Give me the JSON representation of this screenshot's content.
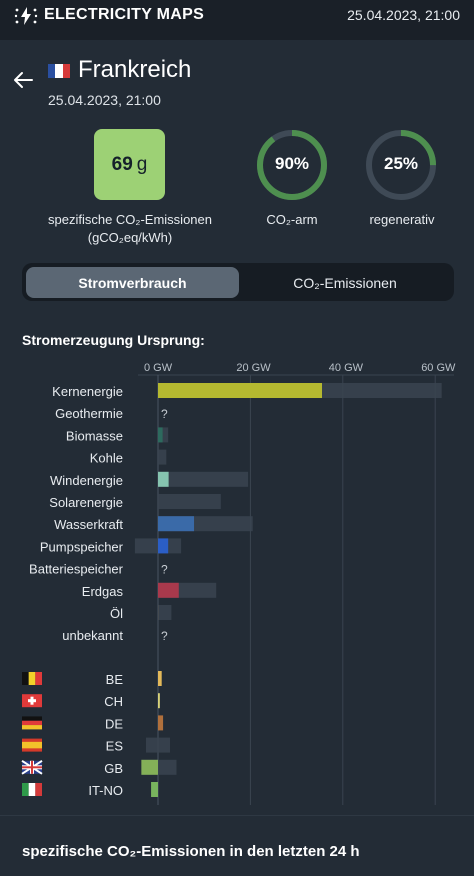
{
  "header": {
    "brand": "ELECTRICITY MAPS",
    "datetime": "25.04.2023, 21:00"
  },
  "zone": {
    "name": "Frankreich",
    "date": "25.04.2023, 21:00"
  },
  "metrics": {
    "intensity_value": "69",
    "intensity_unit": "g",
    "intensity_label_1": "spezifische CO₂-Emissionen",
    "intensity_label_2": "(gCO₂eq/kWh)",
    "low_carbon_value": "90%",
    "low_carbon_fraction": 0.9,
    "low_carbon_label": "CO₂-arm",
    "renewable_value": "25%",
    "renewable_fraction": 0.25,
    "renewable_label": "regenerativ"
  },
  "toggle": {
    "active": "Stromverbrauch",
    "inactive": "CO₂-Emissionen"
  },
  "section": {
    "origin_title": "Stromerzeugung Ursprung:",
    "history_title": "spezifische CO₂-Emissionen in den letzten 24 h"
  },
  "colors": {
    "nuclear": "#b5b930",
    "wind": "#86c4b0",
    "hydro": "#3a6aa8",
    "pumped": "#2b5ec6",
    "biomass": "#2d6a5e",
    "gas": "#a8394c",
    "bar_bg": "#3a4450",
    "be": "#e3b95a",
    "ch": "#d9d37a",
    "de": "#b0703c",
    "gb": "#84b058",
    "itno": "#78b45e",
    "accent_green": "#9dd175"
  },
  "chart_data": {
    "type": "bar",
    "x_tick_labels": [
      "0 GW",
      "20 GW",
      "40 GW",
      "60 GW"
    ],
    "x_range_gw": [
      0,
      60
    ],
    "grid": true,
    "sources": [
      {
        "name": "Kernenergie",
        "value": 35.5,
        "capacity": 61.4,
        "color": "#b5b930"
      },
      {
        "name": "Geothermie",
        "value": null,
        "capacity": null,
        "label": "?"
      },
      {
        "name": "Biomasse",
        "value": 1.0,
        "capacity": 2.2,
        "color": "#2d6a5e"
      },
      {
        "name": "Kohle",
        "value": 0.0,
        "capacity": 1.8,
        "color": "#555555"
      },
      {
        "name": "Windenergie",
        "value": 2.3,
        "capacity": 19.5,
        "color": "#86c4b0"
      },
      {
        "name": "Solarenergie",
        "value": 0.0,
        "capacity": 13.6,
        "color": "#e0c840"
      },
      {
        "name": "Wasserkraft",
        "value": 7.8,
        "capacity": 20.5,
        "color": "#3a6aa8"
      },
      {
        "name": "Pumpspeicher",
        "value": 2.2,
        "capacity": 5.0,
        "negative_capacity": 5.0,
        "color": "#2b5ec6"
      },
      {
        "name": "Batteriespeicher",
        "value": null,
        "capacity": null,
        "label": "?"
      },
      {
        "name": "Erdgas",
        "value": 4.5,
        "capacity": 12.6,
        "color": "#a8394c"
      },
      {
        "name": "Öl",
        "value": 0.1,
        "capacity": 2.9,
        "color": "#555555"
      },
      {
        "name": "unbekannt",
        "value": null,
        "capacity": null,
        "label": "?"
      }
    ],
    "exchanges": [
      {
        "name": "BE",
        "flag": "be",
        "value": 0.8,
        "color": "#e3b95a"
      },
      {
        "name": "CH",
        "flag": "ch",
        "value": 0.4,
        "color": "#d9d37a"
      },
      {
        "name": "DE",
        "flag": "de",
        "value": 1.1,
        "color": "#b0703c"
      },
      {
        "name": "ES",
        "flag": "es",
        "value": 0.0,
        "range": [
          -2.6,
          2.6
        ],
        "color": "#e8a040"
      },
      {
        "name": "GB",
        "flag": "gb",
        "value": -3.6,
        "range": [
          -3.6,
          4.0
        ],
        "color": "#84b058"
      },
      {
        "name": "IT-NO",
        "flag": "it",
        "value": -1.5,
        "color": "#78b45e"
      }
    ]
  }
}
